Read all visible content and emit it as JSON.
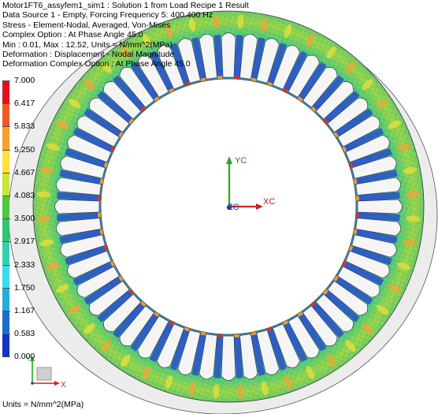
{
  "header": {
    "lines": [
      "Motor1FT6_assyfem1_sim1 : Solution 1 from Load Recipe 1 Result",
      "Data Source 1 - Empty, Forcing Frequency 5: 400.400 Hz",
      "Stress - Element-Nodal, Averaged, Von-Mises",
      "Complex Option : At Phase Angle 45.0",
      "Min : 0.01, Max : 12.52, Units = N/mm^2(MPa)",
      "Deformation : Displacement - Nodal Magnitude",
      "Deformation Complex Option : At Phase Angle 45.0"
    ]
  },
  "legend": {
    "labels": [
      "7.000",
      "6.417",
      "5.833",
      "5.250",
      "4.667",
      "4.083",
      "3.500",
      "2.917",
      "2.333",
      "1.750",
      "1.167",
      "0.583",
      "0.000"
    ],
    "colors": [
      "#e0101c",
      "#ef5a22",
      "#f7a02a",
      "#fde23a",
      "#c9e632",
      "#50c83c",
      "#33c46f",
      "#2fd3b2",
      "#37dcee",
      "#21aedf",
      "#1b6ccf",
      "#1433c0",
      "#2a2aa8"
    ]
  },
  "units": "Units = N/mm^2(MPa)",
  "axes": {
    "yc": "YC",
    "xc": "XC",
    "zc": "ZC"
  },
  "triad": {
    "y": "Y",
    "x": "X"
  },
  "model": {
    "slots": 48
  },
  "colors": {
    "outline": "#444444",
    "axis_x": "#cc2222",
    "axis_y": "#22aa22",
    "axis_z": "#1144cc"
  }
}
